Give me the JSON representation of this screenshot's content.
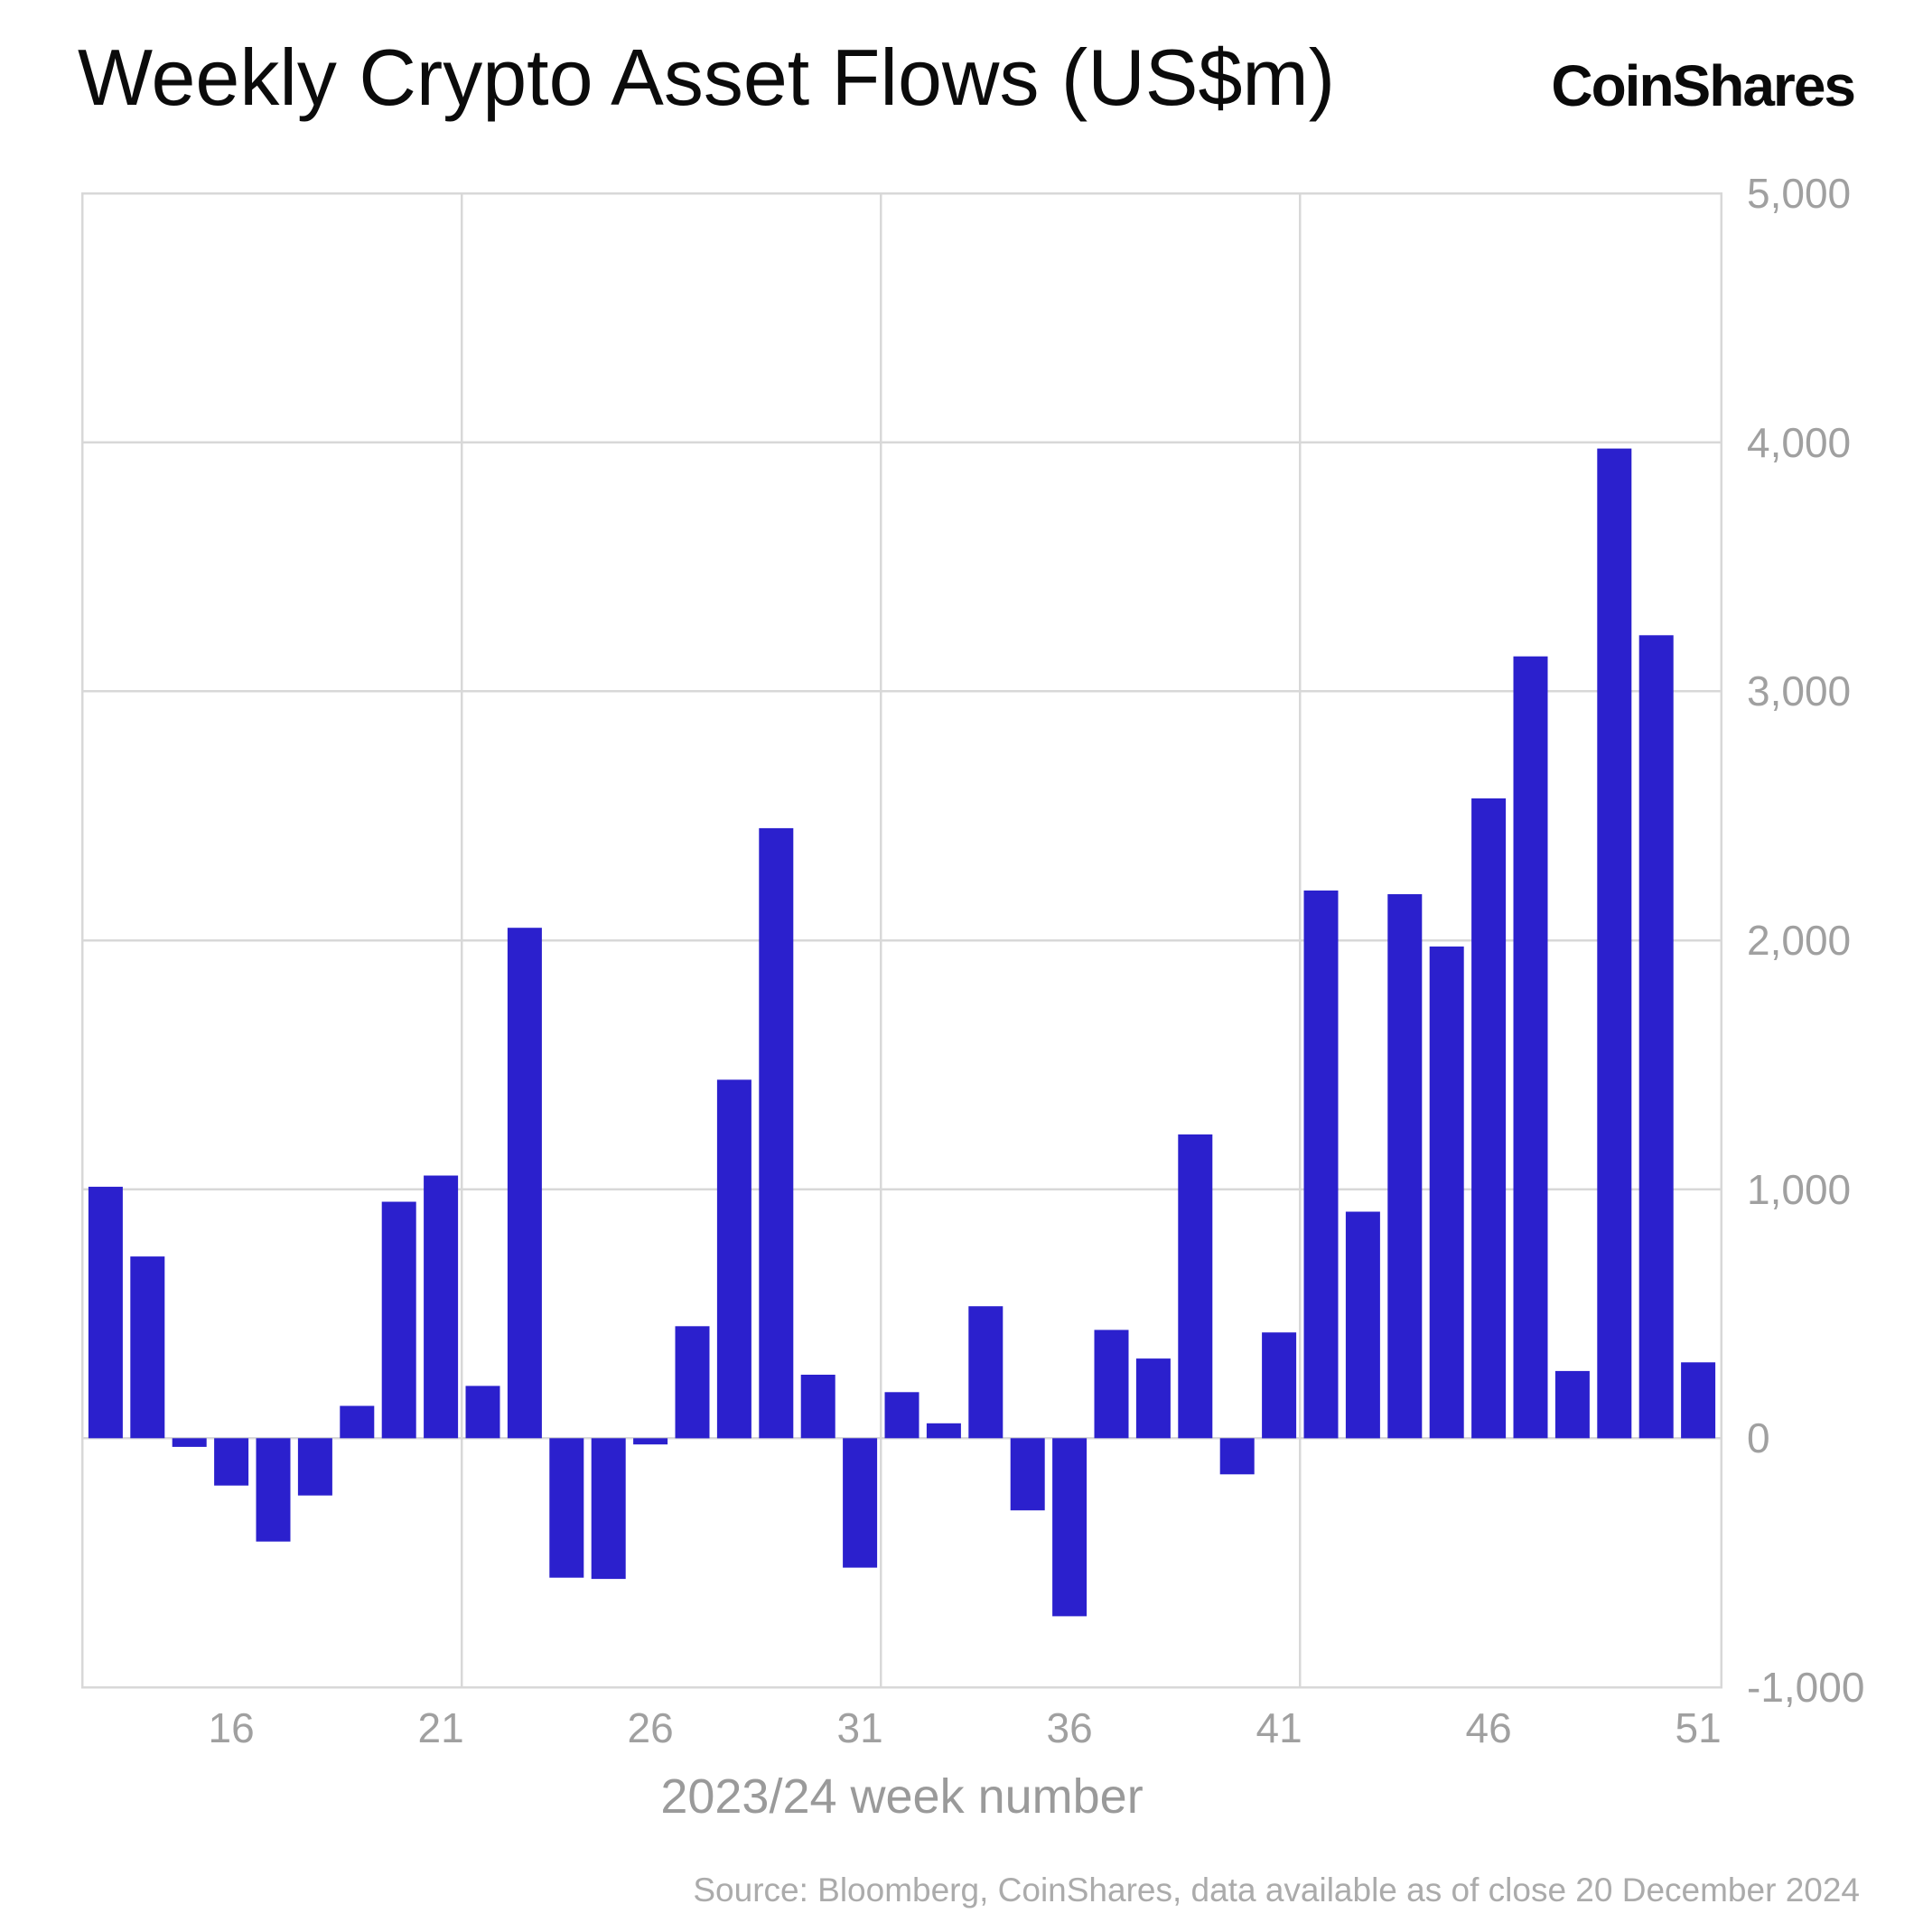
{
  "header": {
    "title": "Weekly Crypto Asset Flows (US$m)",
    "logo": "CoinShares"
  },
  "footer": {
    "source": "Source: Bloomberg, CoinShares, data available as of close 20 December 2024"
  },
  "colors": {
    "bar": "#2b20cd",
    "grid": "#d8d8d8",
    "tick_text": "#a0a0a0",
    "title_text": "#0b0b0b",
    "source_text": "#ababab"
  },
  "chart_data": {
    "type": "bar",
    "title": "Weekly Crypto Asset Flows (US$m)",
    "xlabel": "2023/24 week number",
    "ylabel": "",
    "x": [
      13,
      14,
      15,
      16,
      17,
      18,
      19,
      20,
      21,
      22,
      23,
      24,
      25,
      26,
      27,
      28,
      29,
      30,
      31,
      32,
      33,
      34,
      35,
      36,
      37,
      38,
      39,
      40,
      41,
      42,
      43,
      44,
      45,
      46,
      47,
      48,
      49,
      50,
      51
    ],
    "values": [
      1010,
      730,
      -35,
      -190,
      -415,
      -230,
      130,
      950,
      1055,
      210,
      2050,
      -560,
      -565,
      -25,
      450,
      1440,
      2450,
      255,
      -520,
      185,
      60,
      530,
      -290,
      -715,
      435,
      320,
      1220,
      -145,
      425,
      2200,
      910,
      2185,
      1975,
      2570,
      3140,
      270,
      3975,
      3225,
      305
    ],
    "x_ticks": [
      16,
      21,
      26,
      31,
      36,
      41,
      46,
      51
    ],
    "y_ticks": [
      5000,
      4000,
      3000,
      2000,
      1000,
      0,
      -1000
    ],
    "ylim": [
      -1000,
      5000
    ],
    "xlim": [
      12.42,
      51.58
    ],
    "grid_x": [
      21.5,
      31.5,
      41.5
    ],
    "grid": "on",
    "legend": "none"
  }
}
